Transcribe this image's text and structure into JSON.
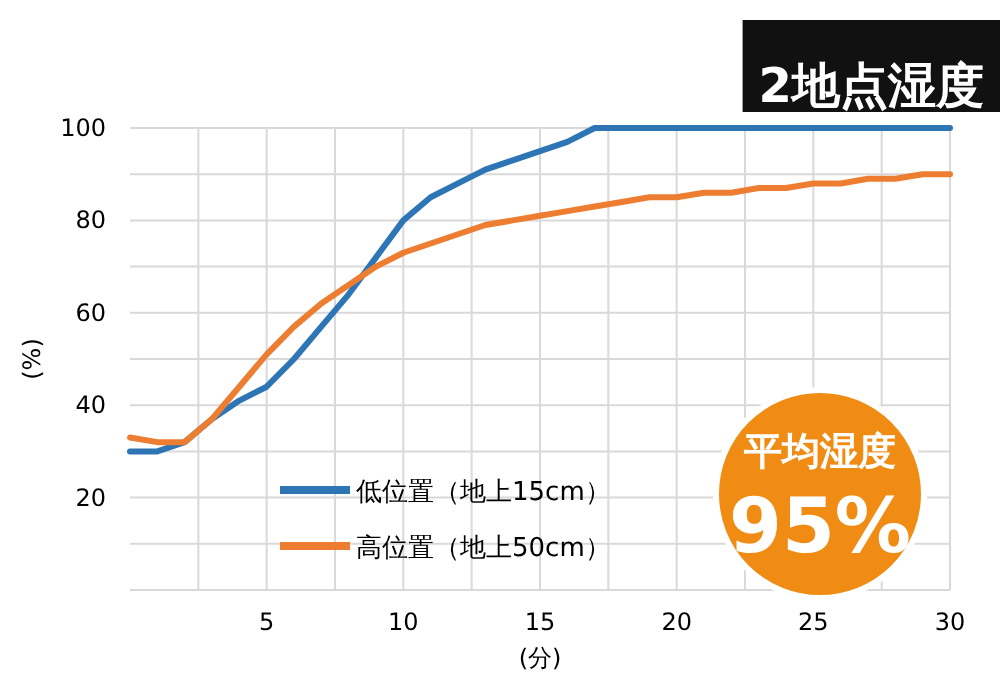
{
  "chart_data": {
    "type": "line",
    "title": "2地点湿度",
    "xlabel": "(分)",
    "ylabel": "(%)",
    "annotations": [
      "平均湿度",
      "95%"
    ],
    "x": [
      0,
      1,
      2,
      3,
      4,
      5,
      6,
      7,
      8,
      9,
      10,
      11,
      12,
      13,
      14,
      15,
      16,
      17,
      18,
      19,
      20,
      21,
      22,
      23,
      24,
      25,
      26,
      27,
      28,
      29,
      30
    ],
    "series": [
      {
        "name": "低位置（地上15cm）",
        "color": "#2e75b6",
        "values": [
          30,
          30,
          32,
          37,
          41,
          44,
          50,
          57,
          64,
          72,
          80,
          85,
          88,
          91,
          93,
          95,
          97,
          100,
          100,
          100,
          100,
          100,
          100,
          100,
          100,
          100,
          100,
          100,
          100,
          100,
          100
        ]
      },
      {
        "name": "高位置（地上50cm）",
        "color": "#ed7d31",
        "values": [
          33,
          32,
          32,
          37,
          44,
          51,
          57,
          62,
          66,
          70,
          73,
          75,
          77,
          79,
          80,
          81,
          82,
          83,
          84,
          85,
          85,
          86,
          86,
          87,
          87,
          88,
          88,
          89,
          89,
          90,
          90
        ]
      }
    ],
    "xlim": [
      0,
      30
    ],
    "ylim": [
      0,
      100
    ],
    "xticks": [
      {
        "value": 2.5,
        "label": null
      },
      5,
      {
        "value": 7.5,
        "label": null
      },
      10,
      {
        "value": 12.5,
        "label": null
      },
      15,
      {
        "value": 17.5,
        "label": null
      },
      20,
      {
        "value": 22.5,
        "label": null
      },
      25,
      {
        "value": 27.5,
        "label": null
      },
      30
    ],
    "yticks": [
      {
        "value": 10,
        "label": null
      },
      20,
      {
        "value": 30,
        "label": null
      },
      40,
      {
        "value": 50,
        "label": null
      },
      60,
      {
        "value": 70,
        "label": null
      },
      80,
      {
        "value": 90,
        "label": null
      },
      100
    ],
    "grid": true,
    "legend": "bottom left",
    "marker": "none",
    "line_style": "solid"
  }
}
